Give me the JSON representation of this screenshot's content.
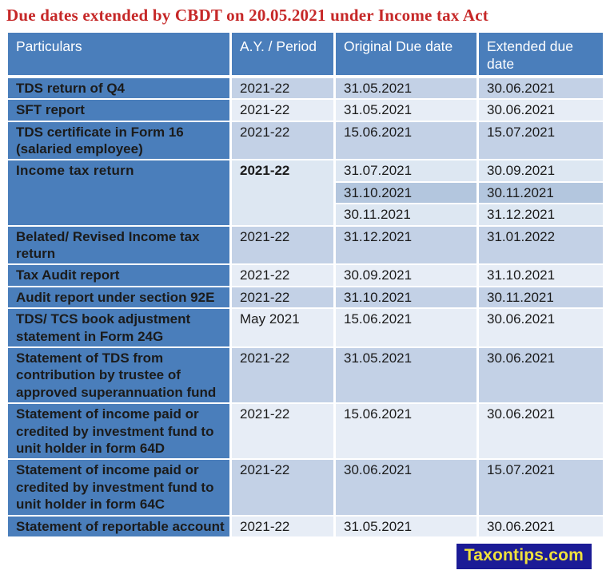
{
  "title": "Due dates extended by CBDT on 20.05.2021 under Income tax Act",
  "colors": {
    "title-red": "#c62828",
    "accent-blue": "#4a7ebb",
    "band-dark": "#c3d1e6",
    "band-light": "#e7edf6",
    "band-sublight": "#dde7f2",
    "band-subdark": "#b3c6de",
    "brand-bg": "#1b1b96",
    "brand-yellow": "#f0e23c"
  },
  "table": {
    "columns": [
      "Particulars",
      "A.Y. / Period",
      "Original Due date",
      "Extended due date"
    ],
    "rows": [
      {
        "particulars": "TDS return of Q4",
        "period": "2021-22",
        "entries": [
          {
            "original": "31.05.2021",
            "extended": "30.06.2021"
          }
        ]
      },
      {
        "particulars": "SFT report",
        "period": "2021-22",
        "entries": [
          {
            "original": "31.05.2021",
            "extended": "30.06.2021"
          }
        ]
      },
      {
        "particulars": "TDS certificate in Form 16 (salaried employee)",
        "period": "2021-22",
        "entries": [
          {
            "original": "15.06.2021",
            "extended": "15.07.2021"
          }
        ]
      },
      {
        "particulars": "Income tax return",
        "period": "2021-22",
        "big": true,
        "entries": [
          {
            "original": "31.07.2021",
            "extended": "30.09.2021"
          },
          {
            "original": "31.10.2021",
            "extended": "30.11.2021"
          },
          {
            "original": "30.11.2021",
            "extended": "31.12.2021"
          }
        ]
      },
      {
        "particulars": "Belated/ Revised Income tax return",
        "period": "2021-22",
        "entries": [
          {
            "original": "31.12.2021",
            "extended": "31.01.2022"
          }
        ]
      },
      {
        "particulars": "Tax Audit report",
        "period": "2021-22",
        "entries": [
          {
            "original": "30.09.2021",
            "extended": "31.10.2021"
          }
        ]
      },
      {
        "particulars": "Audit report under section 92E",
        "period": "2021-22",
        "entries": [
          {
            "original": "31.10.2021",
            "extended": "30.11.2021"
          }
        ]
      },
      {
        "particulars": "TDS/ TCS book adjustment statement in Form 24G",
        "period": "May 2021",
        "entries": [
          {
            "original": "15.06.2021",
            "extended": "30.06.2021"
          }
        ]
      },
      {
        "particulars": "Statement of TDS from contribution by trustee of approved superannuation fund",
        "period": "2021-22",
        "entries": [
          {
            "original": "31.05.2021",
            "extended": "30.06.2021"
          }
        ]
      },
      {
        "particulars": "Statement of income paid or credited by investment fund to unit holder in form 64D",
        "period": "2021-22",
        "entries": [
          {
            "original": "15.06.2021",
            "extended": "30.06.2021"
          }
        ]
      },
      {
        "particulars": "Statement of income paid or credited by investment fund to unit holder in form 64C",
        "period": "2021-22",
        "entries": [
          {
            "original": "30.06.2021",
            "extended": "15.07.2021"
          }
        ]
      },
      {
        "particulars": "Statement of reportable account",
        "period": "2021-22",
        "entries": [
          {
            "original": "31.05.2021",
            "extended": "30.06.2021"
          }
        ]
      }
    ]
  },
  "footer": {
    "brand": "Taxontips.com"
  }
}
